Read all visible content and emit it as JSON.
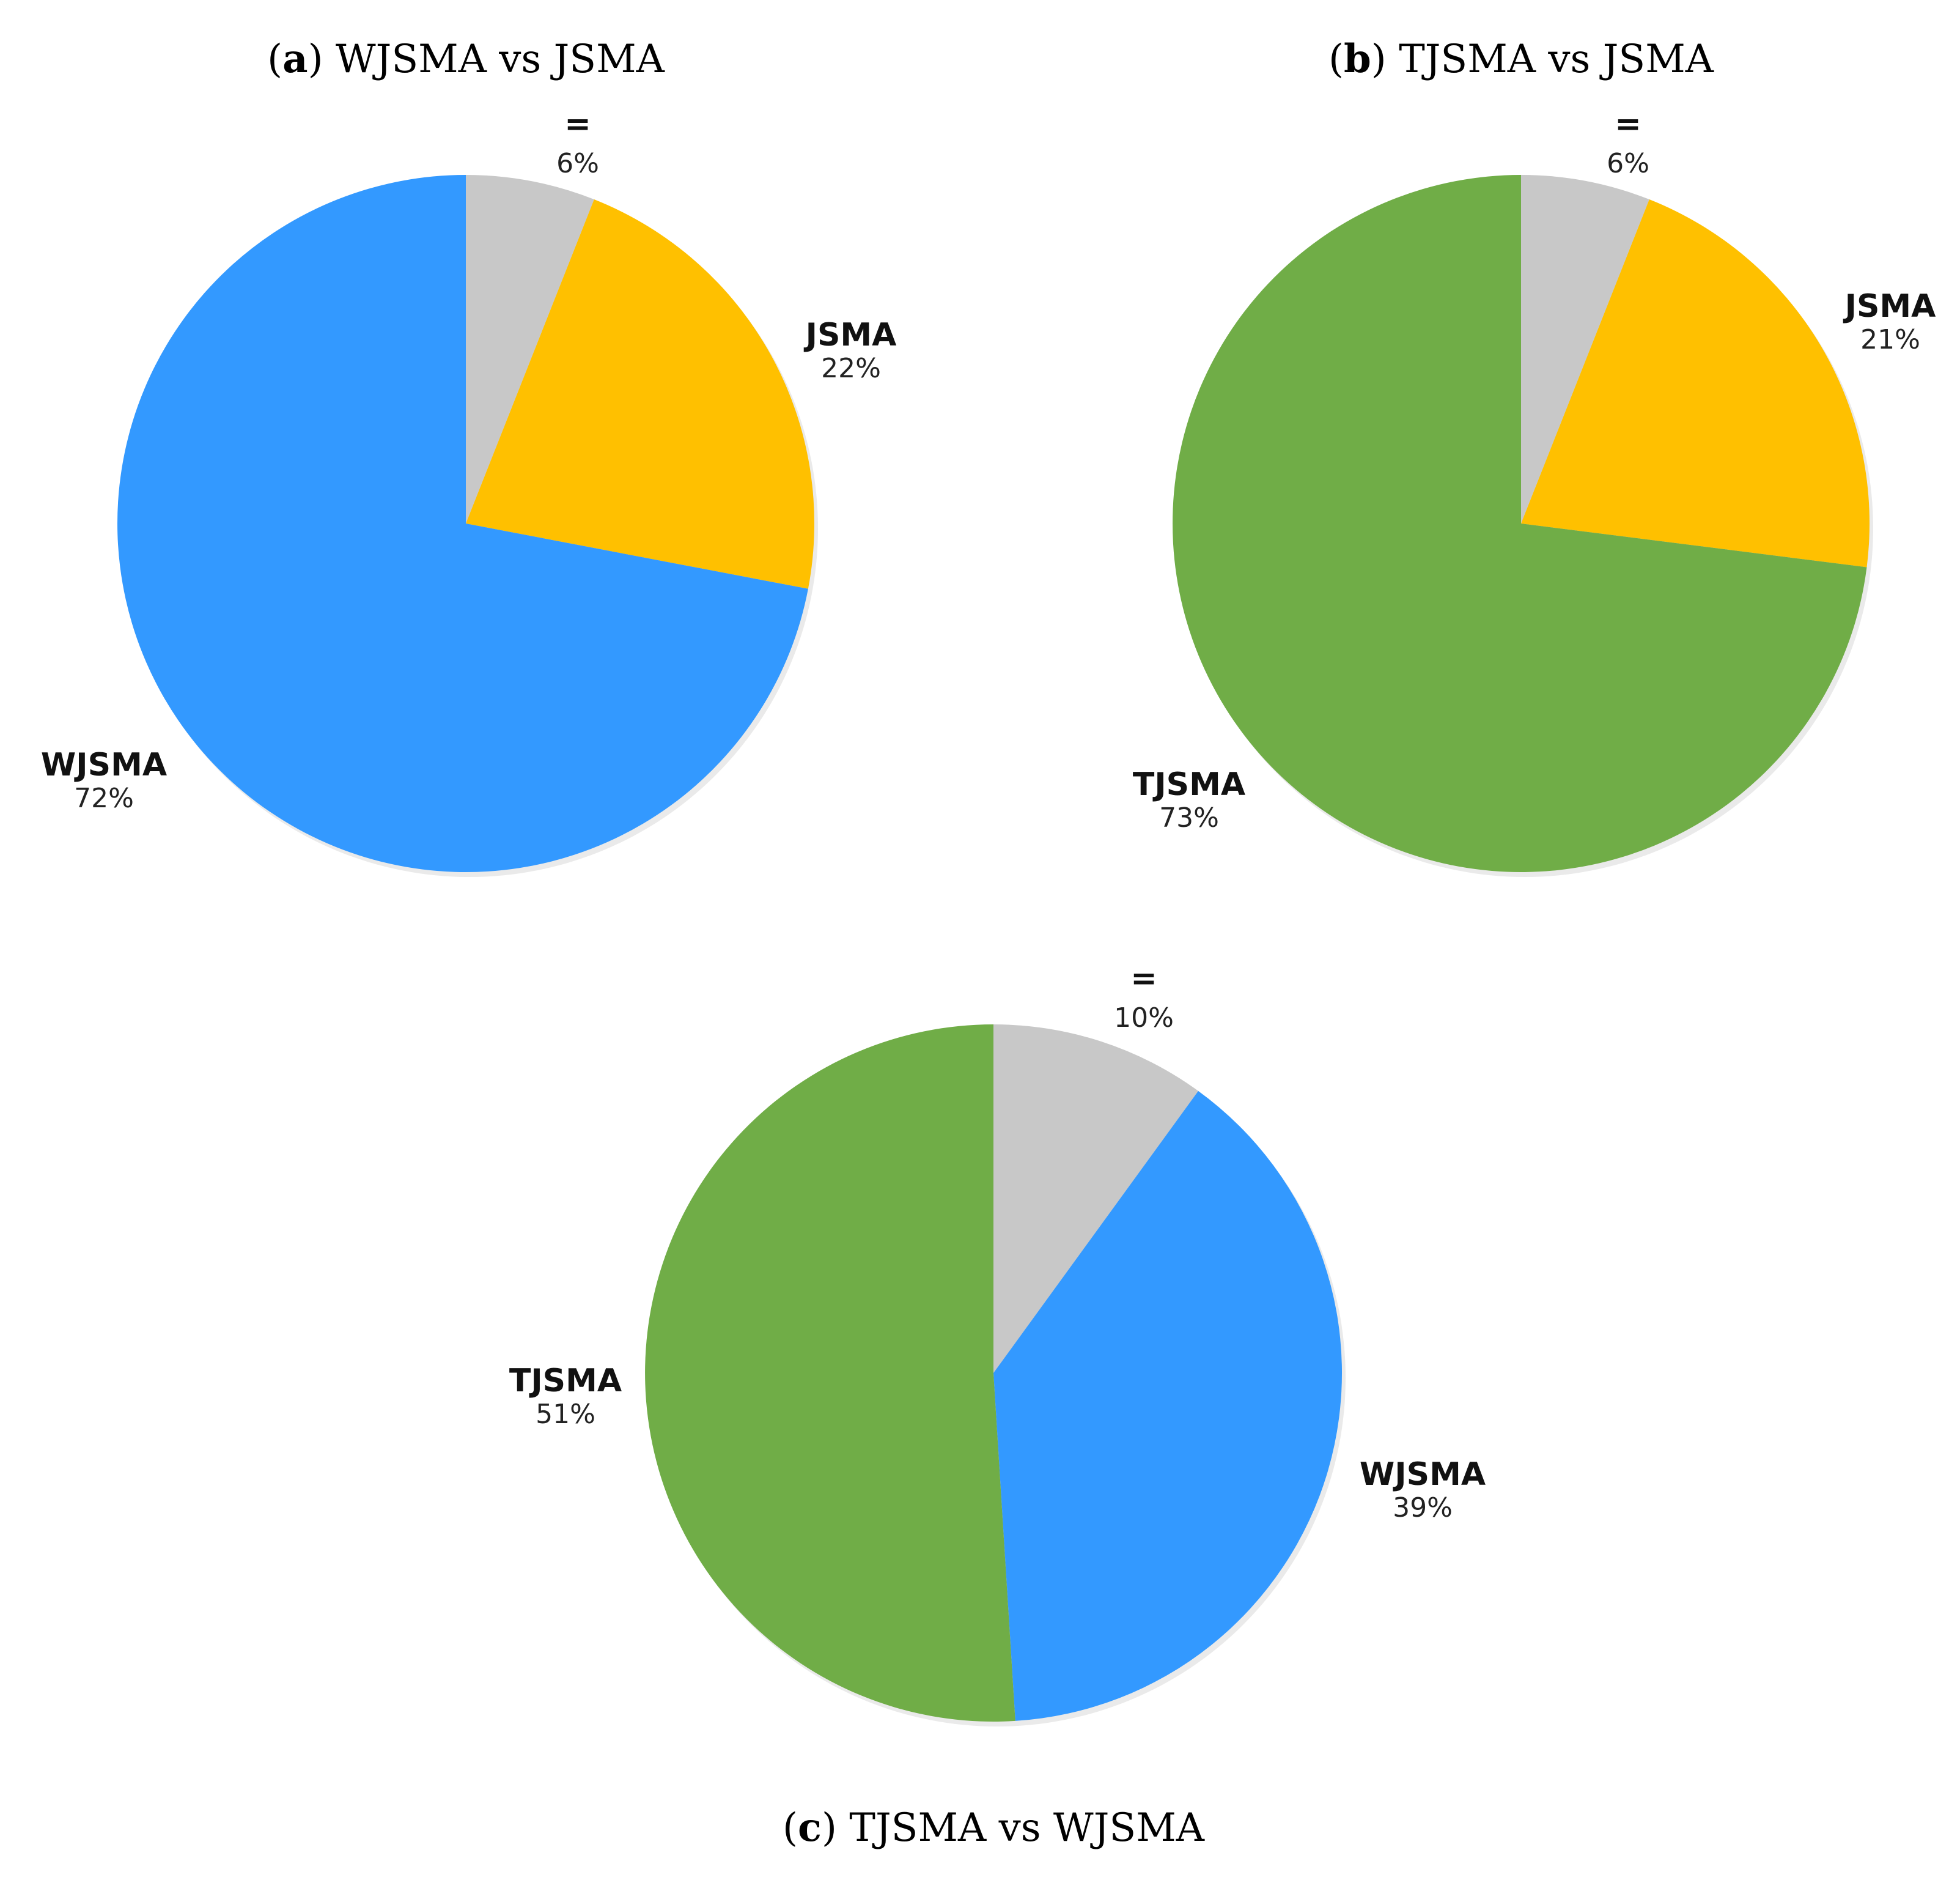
{
  "chart_data": [
    {
      "type": "pie",
      "panel_letter": "a",
      "title": "WJSMA vs JSMA",
      "slices": [
        {
          "label": "=",
          "value": 6,
          "value_text": "6%",
          "color": "#c8c8c8"
        },
        {
          "label": "JSMA",
          "value": 22,
          "value_text": "22%",
          "color": "#ffc000"
        },
        {
          "label": "WJSMA",
          "value": 72,
          "value_text": "72%",
          "color": "#3399ff"
        }
      ]
    },
    {
      "type": "pie",
      "panel_letter": "b",
      "title": "TJSMA vs JSMA",
      "slices": [
        {
          "label": "=",
          "value": 6,
          "value_text": "6%",
          "color": "#c8c8c8"
        },
        {
          "label": "JSMA",
          "value": 21,
          "value_text": "21%",
          "color": "#ffc000"
        },
        {
          "label": "TJSMA",
          "value": 73,
          "value_text": "73%",
          "color": "#70ad47"
        }
      ]
    },
    {
      "type": "pie",
      "panel_letter": "c",
      "title": "TJSMA vs WJSMA",
      "slices": [
        {
          "label": "=",
          "value": 10,
          "value_text": "10%",
          "color": "#c8c8c8"
        },
        {
          "label": "WJSMA",
          "value": 39,
          "value_text": "39%",
          "color": "#3399ff"
        },
        {
          "label": "TJSMA",
          "value": 51,
          "value_text": "51%",
          "color": "#70ad47"
        }
      ]
    }
  ]
}
